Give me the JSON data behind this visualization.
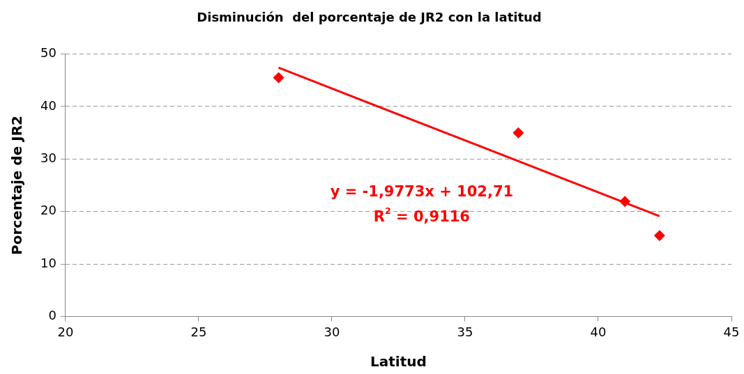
{
  "chart_data": {
    "type": "scatter",
    "title": "Disminución  del porcentaje de JR2 con la latitud",
    "xlabel": "Latitud",
    "ylabel": "Porcentaje de JR2",
    "xlim": [
      20,
      45
    ],
    "xticks": [
      20,
      25,
      30,
      35,
      40,
      45
    ],
    "ylim": [
      0,
      50
    ],
    "yticks": [
      0,
      10,
      20,
      30,
      40,
      50
    ],
    "grid": "y",
    "legend": false,
    "marker": "diamond",
    "series": [
      {
        "color": "#ff0000",
        "x": [
          28,
          37,
          41,
          42.3
        ],
        "values": [
          45.5,
          35,
          21.9,
          15.4
        ]
      },
      {
        "type": "line",
        "color": "#ff0000",
        "marker": "none",
        "line_style": "solid",
        "x": [
          28,
          42.3
        ],
        "values": [
          47.4,
          19.1
        ]
      }
    ],
    "annotations": [
      "y = -1,9773x + 102,71",
      "R$^{2}$ = 0,9116"
    ]
  }
}
